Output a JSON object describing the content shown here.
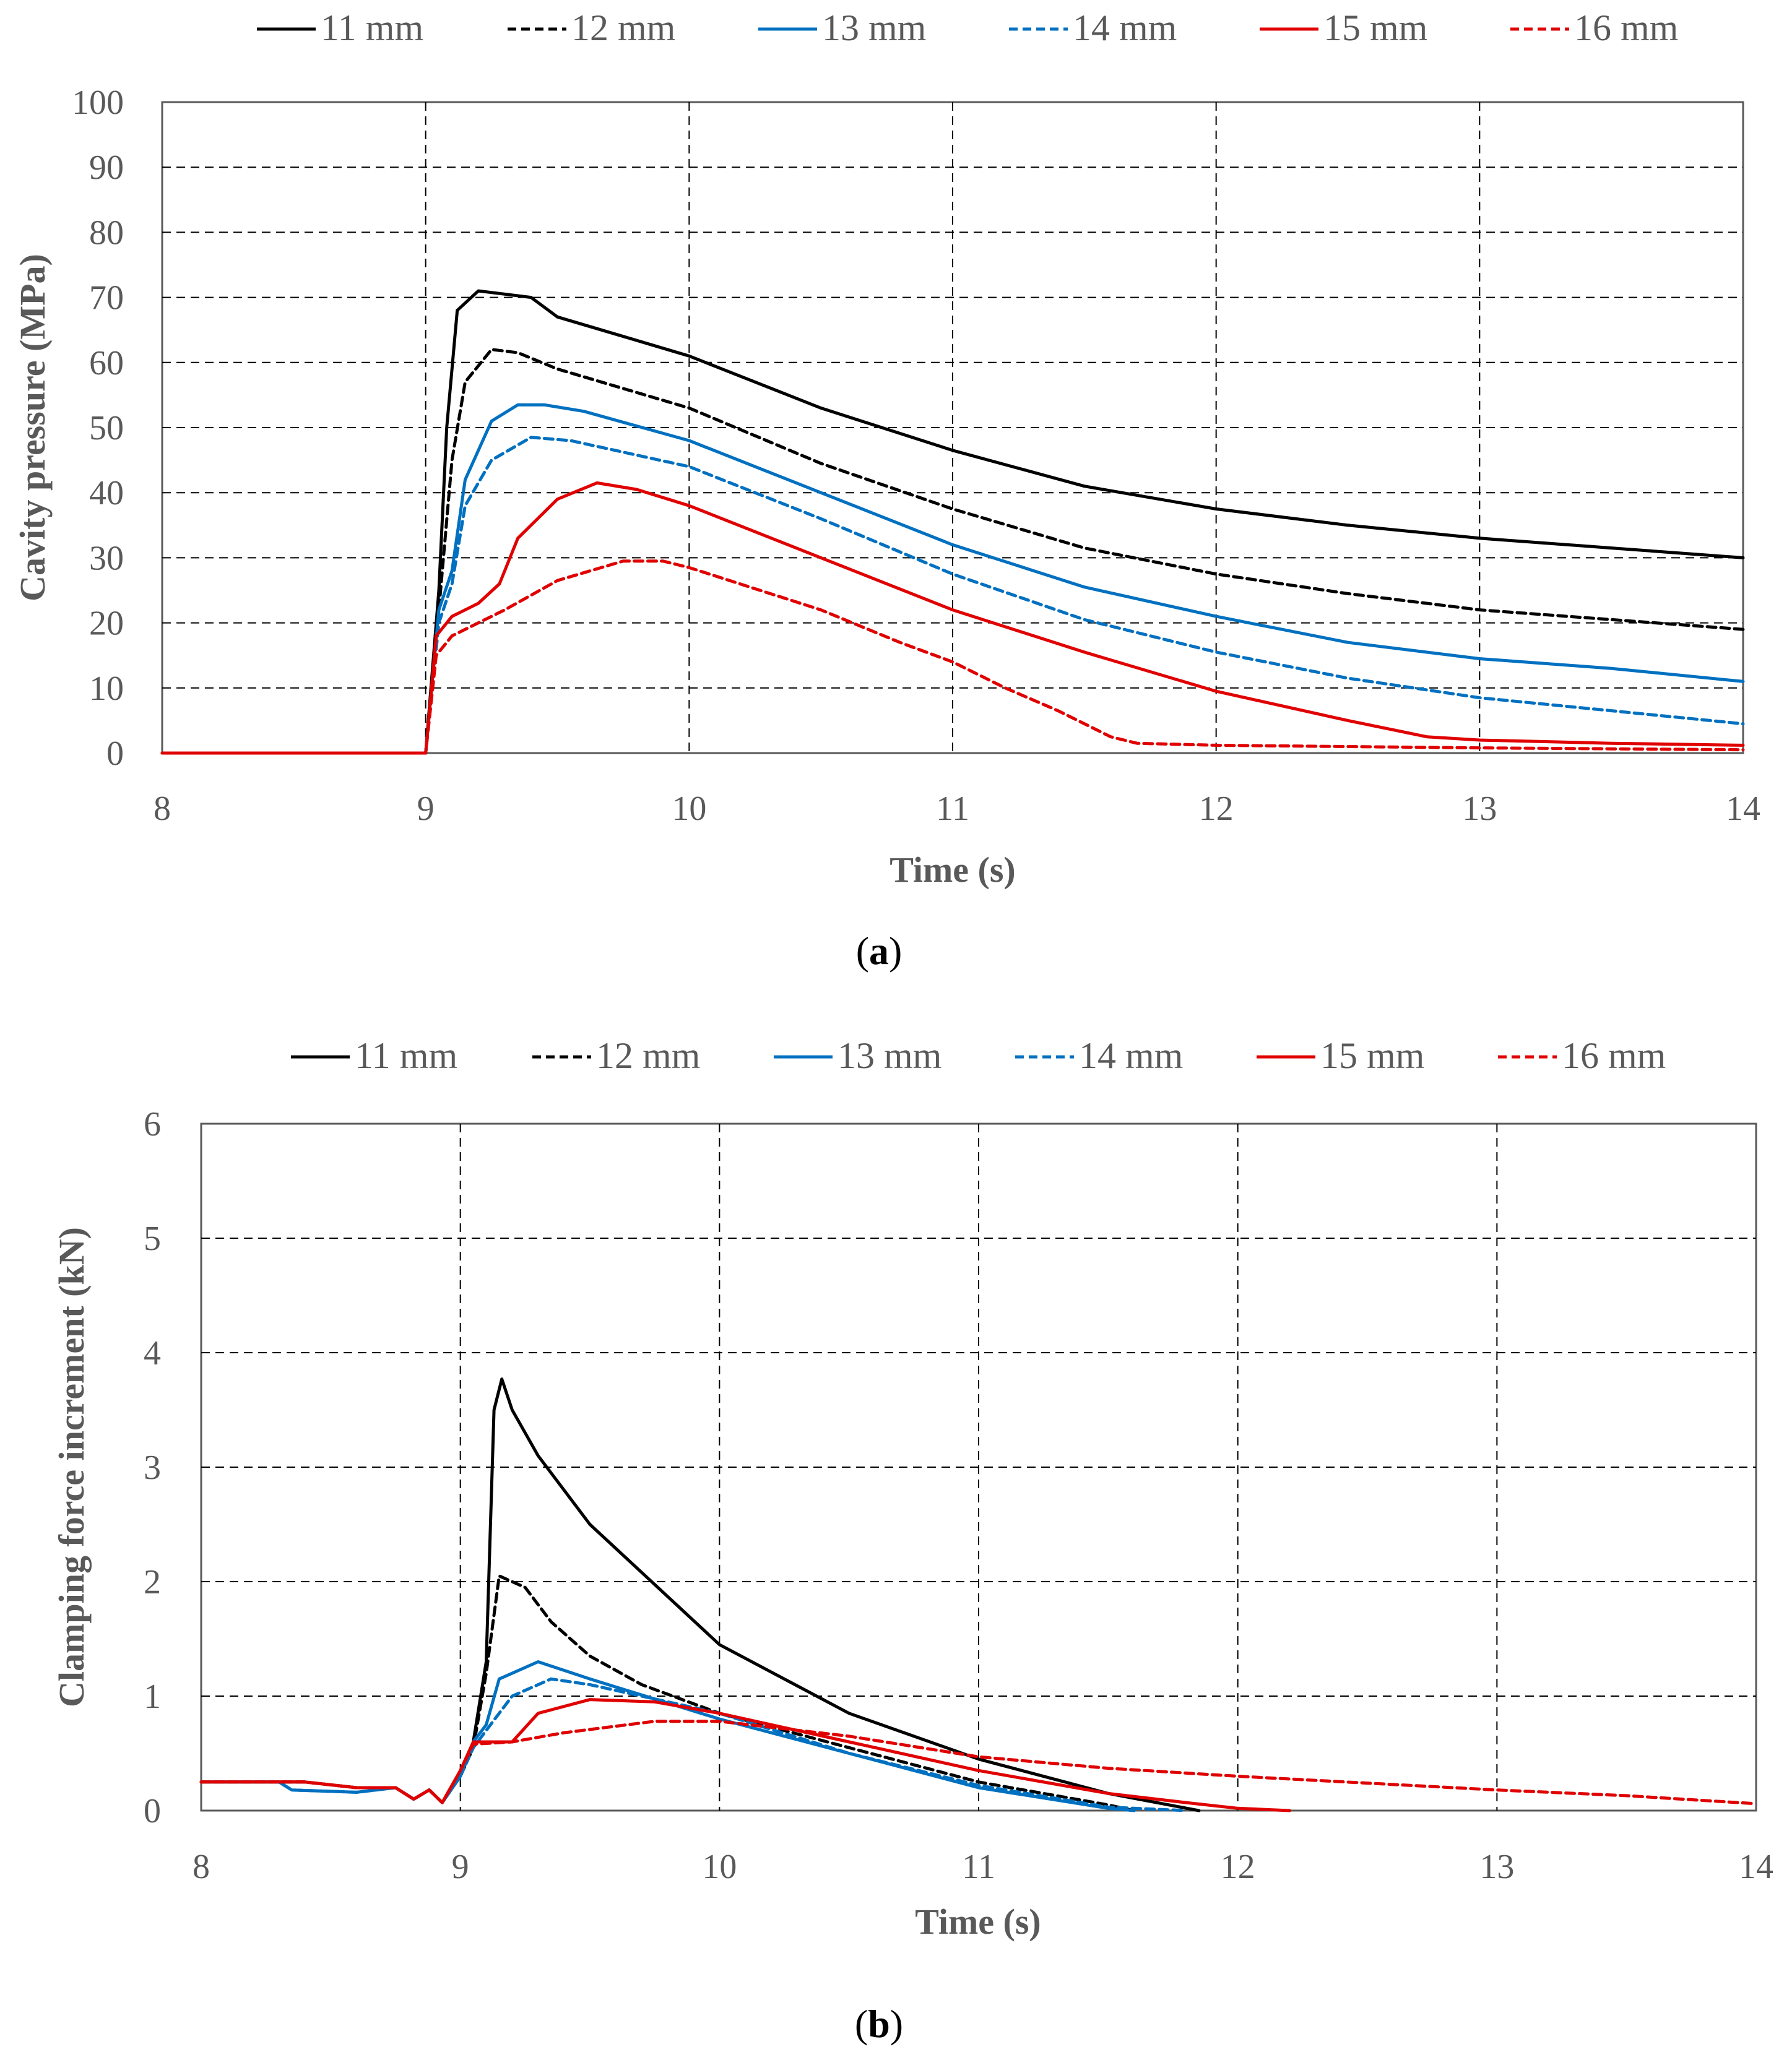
{
  "colors": {
    "black": "#000000",
    "blue": "#0070c0",
    "red": "#e00000",
    "grid": "#000000",
    "axis_text": "#595959"
  },
  "chart_data": [
    {
      "type": "line",
      "caption_letter": "a",
      "xlabel": "Time (s)",
      "ylabel": "Cavity pressure (MPa)",
      "xlim": [
        8,
        14
      ],
      "ylim": [
        0,
        100
      ],
      "xticks": [
        "8",
        "9",
        "10",
        "11",
        "12",
        "13",
        "14"
      ],
      "yticks": [
        "0",
        "10",
        "20",
        "30",
        "40",
        "50",
        "60",
        "70",
        "80",
        "90",
        "100"
      ],
      "legend_position": "top",
      "series": [
        {
          "name": "11 mm",
          "color": "#000000",
          "dash": "solid",
          "points": [
            [
              8,
              0
            ],
            [
              9,
              0
            ],
            [
              9.05,
              25
            ],
            [
              9.08,
              50
            ],
            [
              9.12,
              68
            ],
            [
              9.2,
              71
            ],
            [
              9.3,
              70.5
            ],
            [
              9.4,
              70
            ],
            [
              9.5,
              67
            ],
            [
              9.75,
              64
            ],
            [
              10,
              61
            ],
            [
              10.5,
              53
            ],
            [
              11,
              46.5
            ],
            [
              11.5,
              41
            ],
            [
              12,
              37.5
            ],
            [
              12.5,
              35
            ],
            [
              13,
              33
            ],
            [
              13.5,
              31.5
            ],
            [
              14,
              30
            ]
          ]
        },
        {
          "name": "12 mm",
          "color": "#000000",
          "dash": "dashed",
          "points": [
            [
              8,
              0
            ],
            [
              9,
              0
            ],
            [
              9.05,
              22
            ],
            [
              9.1,
              45
            ],
            [
              9.15,
              57
            ],
            [
              9.25,
              62
            ],
            [
              9.35,
              61.5
            ],
            [
              9.5,
              59
            ],
            [
              10,
              53
            ],
            [
              10.5,
              44.5
            ],
            [
              11,
              37.5
            ],
            [
              11.5,
              31.5
            ],
            [
              12,
              27.5
            ],
            [
              12.5,
              24.5
            ],
            [
              13,
              22
            ],
            [
              13.5,
              20.5
            ],
            [
              14,
              19
            ]
          ]
        },
        {
          "name": "13 mm",
          "color": "#0070c0",
          "dash": "solid",
          "points": [
            [
              8,
              0
            ],
            [
              9,
              0
            ],
            [
              9.05,
              22
            ],
            [
              9.1,
              28
            ],
            [
              9.15,
              42
            ],
            [
              9.25,
              51
            ],
            [
              9.35,
              53.5
            ],
            [
              9.45,
              53.5
            ],
            [
              9.6,
              52.5
            ],
            [
              10,
              48
            ],
            [
              10.5,
              40
            ],
            [
              11,
              32
            ],
            [
              11.5,
              25.5
            ],
            [
              12,
              21
            ],
            [
              12.5,
              17
            ],
            [
              13,
              14.5
            ],
            [
              13.5,
              13
            ],
            [
              14,
              11
            ]
          ]
        },
        {
          "name": "14 mm",
          "color": "#0070c0",
          "dash": "dashed",
          "points": [
            [
              8,
              0
            ],
            [
              9,
              0
            ],
            [
              9.05,
              20
            ],
            [
              9.1,
              26
            ],
            [
              9.15,
              38
            ],
            [
              9.25,
              45
            ],
            [
              9.4,
              48.5
            ],
            [
              9.55,
              48
            ],
            [
              10,
              44
            ],
            [
              10.5,
              36
            ],
            [
              11,
              27.5
            ],
            [
              11.5,
              20.5
            ],
            [
              12,
              15.5
            ],
            [
              12.5,
              11.5
            ],
            [
              13,
              8.5
            ],
            [
              13.5,
              6.5
            ],
            [
              14,
              4.5
            ]
          ]
        },
        {
          "name": "15 mm",
          "color": "#e00000",
          "dash": "solid",
          "points": [
            [
              8,
              0
            ],
            [
              9,
              0
            ],
            [
              9.04,
              18
            ],
            [
              9.1,
              21
            ],
            [
              9.2,
              23
            ],
            [
              9.28,
              26
            ],
            [
              9.35,
              33
            ],
            [
              9.5,
              39
            ],
            [
              9.65,
              41.5
            ],
            [
              9.8,
              40.5
            ],
            [
              10,
              38
            ],
            [
              10.5,
              30
            ],
            [
              11,
              22
            ],
            [
              11.5,
              15.5
            ],
            [
              12,
              9.5
            ],
            [
              12.5,
              5
            ],
            [
              12.8,
              2.5
            ],
            [
              13,
              2
            ],
            [
              13.5,
              1.5
            ],
            [
              14,
              1.2
            ]
          ]
        },
        {
          "name": "16 mm",
          "color": "#e00000",
          "dash": "dashed",
          "points": [
            [
              8,
              0
            ],
            [
              9,
              0
            ],
            [
              9.04,
              15
            ],
            [
              9.1,
              18
            ],
            [
              9.3,
              22
            ],
            [
              9.5,
              26.5
            ],
            [
              9.75,
              29.5
            ],
            [
              9.9,
              29.5
            ],
            [
              10,
              28.5
            ],
            [
              10.5,
              22
            ],
            [
              10.8,
              17
            ],
            [
              11,
              14
            ],
            [
              11.2,
              10
            ],
            [
              11.4,
              6.5
            ],
            [
              11.6,
              2.5
            ],
            [
              11.7,
              1.5
            ],
            [
              12,
              1.2
            ],
            [
              13,
              0.8
            ],
            [
              14,
              0.5
            ]
          ]
        }
      ]
    },
    {
      "type": "line",
      "caption_letter": "b",
      "xlabel": "Time (s)",
      "ylabel": "Clamping force increment (kN)",
      "xlim": [
        8,
        14
      ],
      "ylim": [
        0,
        6
      ],
      "xticks": [
        "8",
        "9",
        "10",
        "11",
        "12",
        "13",
        "14"
      ],
      "yticks": [
        "0",
        "1",
        "2",
        "3",
        "4",
        "5",
        "6"
      ],
      "legend_position": "top",
      "series": [
        {
          "name": "11 mm",
          "color": "#000000",
          "dash": "solid",
          "points": [
            [
              8,
              0.25
            ],
            [
              8.4,
              0.25
            ],
            [
              8.6,
              0.2
            ],
            [
              8.75,
              0.2
            ],
            [
              8.82,
              0.1
            ],
            [
              8.88,
              0.18
            ],
            [
              8.93,
              0.07
            ],
            [
              9,
              0.3
            ],
            [
              9.05,
              0.6
            ],
            [
              9.1,
              1.3
            ],
            [
              9.13,
              3.5
            ],
            [
              9.16,
              3.77
            ],
            [
              9.2,
              3.5
            ],
            [
              9.3,
              3.1
            ],
            [
              9.5,
              2.5
            ],
            [
              10,
              1.45
            ],
            [
              10.5,
              0.85
            ],
            [
              11,
              0.45
            ],
            [
              11.5,
              0.15
            ],
            [
              11.85,
              0
            ]
          ]
        },
        {
          "name": "12 mm",
          "color": "#000000",
          "dash": "dashed",
          "points": [
            [
              8,
              0.25
            ],
            [
              8.4,
              0.25
            ],
            [
              8.6,
              0.2
            ],
            [
              8.75,
              0.2
            ],
            [
              8.82,
              0.1
            ],
            [
              8.88,
              0.18
            ],
            [
              8.93,
              0.07
            ],
            [
              9,
              0.3
            ],
            [
              9.05,
              0.55
            ],
            [
              9.1,
              1.2
            ],
            [
              9.15,
              2.05
            ],
            [
              9.25,
              1.95
            ],
            [
              9.35,
              1.65
            ],
            [
              9.5,
              1.35
            ],
            [
              9.7,
              1.1
            ],
            [
              10,
              0.85
            ],
            [
              10.5,
              0.55
            ],
            [
              11,
              0.25
            ],
            [
              11.5,
              0.05
            ],
            [
              11.6,
              0
            ]
          ]
        },
        {
          "name": "13 mm",
          "color": "#0070c0",
          "dash": "solid",
          "points": [
            [
              8,
              0.25
            ],
            [
              8.3,
              0.25
            ],
            [
              8.35,
              0.18
            ],
            [
              8.6,
              0.16
            ],
            [
              8.75,
              0.2
            ],
            [
              8.82,
              0.1
            ],
            [
              8.88,
              0.18
            ],
            [
              8.93,
              0.07
            ],
            [
              9,
              0.3
            ],
            [
              9.05,
              0.6
            ],
            [
              9.1,
              0.75
            ],
            [
              9.15,
              1.15
            ],
            [
              9.3,
              1.3
            ],
            [
              9.5,
              1.15
            ],
            [
              10,
              0.8
            ],
            [
              10.5,
              0.5
            ],
            [
              11,
              0.2
            ],
            [
              11.5,
              0.02
            ],
            [
              11.6,
              0
            ]
          ]
        },
        {
          "name": "14 mm",
          "color": "#0070c0",
          "dash": "dashed",
          "points": [
            [
              8,
              0.25
            ],
            [
              8.3,
              0.25
            ],
            [
              8.35,
              0.18
            ],
            [
              8.6,
              0.16
            ],
            [
              8.75,
              0.2
            ],
            [
              8.82,
              0.1
            ],
            [
              8.88,
              0.18
            ],
            [
              8.93,
              0.07
            ],
            [
              9,
              0.3
            ],
            [
              9.05,
              0.55
            ],
            [
              9.1,
              0.7
            ],
            [
              9.2,
              1.0
            ],
            [
              9.35,
              1.15
            ],
            [
              9.5,
              1.1
            ],
            [
              10,
              0.85
            ],
            [
              10.5,
              0.5
            ],
            [
              11,
              0.22
            ],
            [
              11.5,
              0.03
            ],
            [
              11.8,
              0
            ]
          ]
        },
        {
          "name": "15 mm",
          "color": "#e00000",
          "dash": "solid",
          "points": [
            [
              8,
              0.25
            ],
            [
              8.4,
              0.25
            ],
            [
              8.6,
              0.2
            ],
            [
              8.75,
              0.2
            ],
            [
              8.82,
              0.1
            ],
            [
              8.88,
              0.18
            ],
            [
              8.93,
              0.07
            ],
            [
              9,
              0.35
            ],
            [
              9.05,
              0.6
            ],
            [
              9.2,
              0.6
            ],
            [
              9.3,
              0.85
            ],
            [
              9.5,
              0.97
            ],
            [
              9.75,
              0.95
            ],
            [
              10,
              0.85
            ],
            [
              10.5,
              0.6
            ],
            [
              11,
              0.35
            ],
            [
              11.5,
              0.15
            ],
            [
              11.8,
              0.07
            ],
            [
              12,
              0.02
            ],
            [
              12.2,
              0
            ]
          ]
        },
        {
          "name": "16 mm",
          "color": "#e00000",
          "dash": "dashed",
          "points": [
            [
              8,
              0.25
            ],
            [
              8.4,
              0.25
            ],
            [
              8.6,
              0.2
            ],
            [
              8.75,
              0.2
            ],
            [
              8.82,
              0.1
            ],
            [
              8.88,
              0.18
            ],
            [
              8.93,
              0.07
            ],
            [
              9,
              0.35
            ],
            [
              9.05,
              0.58
            ],
            [
              9.2,
              0.6
            ],
            [
              9.4,
              0.68
            ],
            [
              9.75,
              0.78
            ],
            [
              10,
              0.78
            ],
            [
              10.5,
              0.65
            ],
            [
              11,
              0.47
            ],
            [
              11.5,
              0.37
            ],
            [
              12,
              0.3
            ],
            [
              12.5,
              0.24
            ],
            [
              13,
              0.18
            ],
            [
              13.5,
              0.13
            ],
            [
              14,
              0.06
            ]
          ]
        }
      ]
    }
  ]
}
